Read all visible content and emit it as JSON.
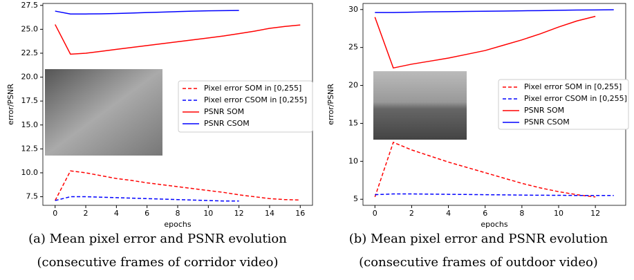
{
  "chart_data": [
    {
      "type": "line",
      "caption": [
        "(a) Mean pixel error and PSNR evolution",
        "(consecutive frames of corridor video)"
      ],
      "xlabel": "epochs",
      "ylabel": "error/PSNR",
      "xlim": [
        -0.8,
        16.8
      ],
      "ylim": [
        6.6,
        27.7
      ],
      "xticks": [
        0,
        2,
        4,
        6,
        8,
        10,
        12,
        14,
        16
      ],
      "yticks": [
        7.5,
        {
          "value": 10,
          "label": "10.0"
        },
        12.5,
        {
          "value": 15,
          "label": "15.0"
        },
        17.5,
        {
          "value": 20,
          "label": "20.0"
        },
        22.5,
        {
          "value": 25,
          "label": "25.0"
        },
        27.5
      ],
      "legend": "center right",
      "series": [
        {
          "name": "Pixel error SOM in [0,255]",
          "color": "#ff0000",
          "linestyle": "dashed",
          "x": [
            0,
            1,
            2,
            3,
            4,
            5,
            6,
            7,
            8,
            9,
            10,
            11,
            12,
            13,
            14,
            15,
            16
          ],
          "values": [
            7.1,
            10.2,
            10.0,
            9.7,
            9.4,
            9.2,
            8.95,
            8.75,
            8.55,
            8.35,
            8.15,
            7.95,
            7.7,
            7.5,
            7.3,
            7.2,
            7.15
          ]
        },
        {
          "name": "Pixel error CSOM in [0,255]",
          "color": "#0000ff",
          "linestyle": "dashed",
          "x": [
            0,
            1,
            2,
            3,
            4,
            5,
            6,
            7,
            8,
            9,
            10,
            11,
            12
          ],
          "values": [
            7.1,
            7.5,
            7.5,
            7.45,
            7.4,
            7.35,
            7.3,
            7.25,
            7.2,
            7.15,
            7.1,
            7.05,
            7.05
          ]
        },
        {
          "name": "PSNR SOM",
          "color": "#ff0000",
          "linestyle": "solid",
          "x": [
            0,
            1,
            2,
            3,
            4,
            5,
            6,
            7,
            8,
            9,
            10,
            11,
            12,
            13,
            14,
            15,
            16
          ],
          "values": [
            25.5,
            22.4,
            22.5,
            22.7,
            22.9,
            23.1,
            23.3,
            23.5,
            23.7,
            23.9,
            24.1,
            24.3,
            24.55,
            24.8,
            25.1,
            25.3,
            25.45
          ]
        },
        {
          "name": "PSNR CSOM",
          "color": "#0000ff",
          "linestyle": "solid",
          "x": [
            0,
            1,
            2,
            3,
            4,
            5,
            6,
            7,
            8,
            9,
            10,
            11,
            12
          ],
          "values": [
            26.9,
            26.6,
            26.6,
            26.62,
            26.65,
            26.7,
            26.75,
            26.8,
            26.85,
            26.9,
            26.93,
            26.95,
            26.97
          ]
        }
      ]
    },
    {
      "type": "line",
      "caption": [
        "(b) Mean pixel error and PSNR evolution",
        "(consecutive frames of outdoor video)"
      ],
      "xlabel": "epochs",
      "ylabel": "error/PSNR",
      "xlim": [
        -0.65,
        13.65
      ],
      "ylim": [
        4.2,
        30.8
      ],
      "xticks": [
        0,
        2,
        4,
        6,
        8,
        10,
        12
      ],
      "yticks": [
        5,
        10,
        15,
        20,
        25,
        30
      ],
      "legend": "center right",
      "series": [
        {
          "name": "Pixel error SOM in [0,255]",
          "color": "#ff0000",
          "linestyle": "dashed",
          "x": [
            0,
            1,
            2,
            3,
            4,
            5,
            6,
            7,
            8,
            9,
            10,
            11,
            12
          ],
          "values": [
            5.3,
            12.5,
            11.5,
            10.7,
            9.9,
            9.2,
            8.5,
            7.8,
            7.1,
            6.5,
            6.0,
            5.6,
            5.3
          ]
        },
        {
          "name": "Pixel error CSOM in [0,255]",
          "color": "#0000ff",
          "linestyle": "dashed",
          "x": [
            0,
            1,
            2,
            3,
            4,
            5,
            6,
            7,
            8,
            9,
            10,
            11,
            12,
            13
          ],
          "values": [
            5.6,
            5.7,
            5.7,
            5.68,
            5.65,
            5.63,
            5.6,
            5.58,
            5.55,
            5.53,
            5.52,
            5.5,
            5.5,
            5.5
          ]
        },
        {
          "name": "PSNR SOM",
          "color": "#ff0000",
          "linestyle": "solid",
          "x": [
            0,
            1,
            2,
            3,
            4,
            5,
            6,
            7,
            8,
            9,
            10,
            11,
            12
          ],
          "values": [
            29,
            22.3,
            22.8,
            23.2,
            23.6,
            24.1,
            24.6,
            25.3,
            26.0,
            26.8,
            27.7,
            28.5,
            29.1
          ]
        },
        {
          "name": "PSNR CSOM",
          "color": "#0000ff",
          "linestyle": "solid",
          "x": [
            0,
            1,
            2,
            3,
            4,
            5,
            6,
            7,
            8,
            9,
            10,
            11,
            12,
            13
          ],
          "values": [
            29.6,
            29.6,
            29.65,
            29.7,
            29.72,
            29.75,
            29.78,
            29.8,
            29.83,
            29.86,
            29.9,
            29.93,
            29.95,
            29.97
          ]
        }
      ]
    }
  ]
}
